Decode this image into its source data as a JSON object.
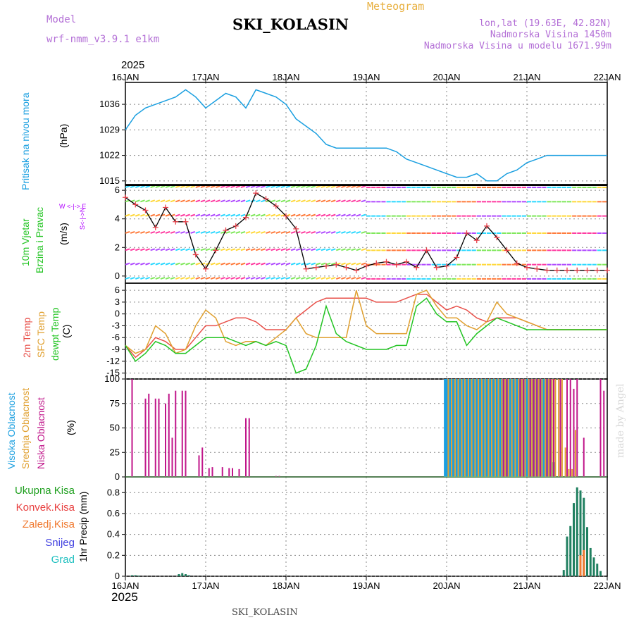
{
  "header": {
    "model_label": "Model",
    "model_name": "wrf-nmm_v3.9.1 e1km",
    "product": "Meteogram",
    "station": "SKI_KOLASIN",
    "location": "lon,lat (19.63E, 42.82N)",
    "elevation": "Nadmorska Visina 1450m",
    "model_elevation": "Nadmorska Visina u modelu 1671.99m",
    "credit": "made by Angel",
    "footer_station": "SKI_KOLASIN"
  },
  "axis": {
    "year": "2025",
    "day_labels": [
      "16JAN",
      "17JAN",
      "18JAN",
      "19JAN",
      "20JAN",
      "21JAN",
      "22JAN"
    ]
  },
  "colors": {
    "pressure": "#1a9fe0",
    "wind_label": "#22c422",
    "wind_dir": "#b000ff",
    "wind_speed": "#000000",
    "wind_marker": "#e8404a",
    "t2m": "#e8504a",
    "tsfc": "#e0a030",
    "dewpt": "#22c422",
    "cloud_high": "#1a9fe0",
    "cloud_mid": "#e0a030",
    "cloud_low": "#c0168a",
    "precip_total": "#20a020",
    "precip_conv": "#e84040",
    "precip_frozen": "#f07a30",
    "precip_snow": "#4040e0",
    "precip_grad": "#20c0c0"
  },
  "chart_data": [
    {
      "type": "line",
      "panel": "pressure",
      "ylabel": "Pritisak na nivou mora",
      "unit": "(hPa)",
      "ylim": [
        1014,
        1042
      ],
      "yticks": [
        1015,
        1022,
        1029,
        1036
      ],
      "grid": true,
      "x_hours": [
        0,
        3,
        6,
        9,
        12,
        15,
        18,
        21,
        24,
        27,
        30,
        33,
        36,
        39,
        42,
        45,
        48,
        51,
        54,
        57,
        60,
        63,
        66,
        69,
        72,
        75,
        78,
        81,
        84,
        87,
        90,
        93,
        96,
        99,
        102,
        105,
        108,
        111,
        114,
        117,
        120,
        123,
        126,
        129,
        132,
        135,
        138,
        141,
        144
      ],
      "series": [
        {
          "name": "Pritisak na nivou mora",
          "values": [
            1029,
            1033,
            1035,
            1036,
            1037,
            1038,
            1040,
            1038,
            1035,
            1037,
            1039,
            1038,
            1035,
            1040,
            1039,
            1038,
            1036,
            1032,
            1030,
            1028,
            1025,
            1024,
            1024,
            1024,
            1024,
            1024,
            1024,
            1023,
            1021,
            1020,
            1019,
            1018,
            1017,
            1016,
            1016,
            1017,
            1015,
            1015,
            1017,
            1018,
            1020,
            1021,
            1022,
            1022,
            1022,
            1022,
            1022,
            1022,
            1022
          ]
        }
      ]
    },
    {
      "type": "line",
      "panel": "wind",
      "ylabel": "10m Vjetar Brzina i Pravac",
      "unit": "(m/s)",
      "direction_legend": "W <-|-> E",
      "ylim": [
        -0.5,
        6.4
      ],
      "yticks": [
        0,
        2,
        4,
        6
      ],
      "grid": true,
      "x_hours": [
        0,
        3,
        6,
        9,
        12,
        15,
        18,
        21,
        24,
        27,
        30,
        33,
        36,
        39,
        42,
        45,
        48,
        51,
        54,
        57,
        60,
        63,
        66,
        69,
        72,
        75,
        78,
        81,
        84,
        87,
        90,
        93,
        96,
        99,
        102,
        105,
        108,
        111,
        114,
        117,
        120,
        123,
        126,
        129,
        132,
        135,
        138,
        141,
        144
      ],
      "series": [
        {
          "name": "10m Vjetar Brzina",
          "values": [
            5.5,
            5,
            4.6,
            3.4,
            4.8,
            3.8,
            3.8,
            1.5,
            0.5,
            1.8,
            3.2,
            3.5,
            4.1,
            5.8,
            5.4,
            4.9,
            4.2,
            3.3,
            0.5,
            0.6,
            0.7,
            0.8,
            0.6,
            0.4,
            0.7,
            0.9,
            1.0,
            0.8,
            1.0,
            0.6,
            1.8,
            0.6,
            0.7,
            1.3,
            3.0,
            2.5,
            3.5,
            2.7,
            1.8,
            0.9,
            0.6,
            0.5,
            0.4,
            0.4,
            0.4,
            0.4,
            0.4,
            0.4,
            0.4
          ]
        }
      ]
    },
    {
      "type": "line",
      "panel": "temperature",
      "unit": "(C)",
      "ylim": [
        -16.5,
        7.8
      ],
      "yticks": [
        -15,
        -12,
        -9,
        -6,
        -3,
        0,
        3,
        6
      ],
      "grid": true,
      "x_hours": [
        0,
        3,
        6,
        9,
        12,
        15,
        18,
        21,
        24,
        27,
        30,
        33,
        36,
        39,
        42,
        45,
        48,
        51,
        54,
        57,
        60,
        63,
        66,
        69,
        72,
        75,
        78,
        81,
        84,
        87,
        90,
        93,
        96,
        99,
        102,
        105,
        108,
        111,
        114,
        117,
        120,
        123,
        126,
        129,
        132,
        135,
        138,
        141,
        144
      ],
      "series": [
        {
          "name": "2m Temp",
          "values": [
            -8,
            -11,
            -9,
            -6,
            -7,
            -9,
            -9,
            -6,
            -3,
            -3,
            -2,
            -1,
            -1,
            -2,
            -4,
            -4,
            -4,
            -1,
            1,
            3,
            4,
            4,
            4,
            4,
            4,
            3,
            3,
            3,
            4,
            5,
            5,
            3,
            1,
            2,
            1,
            -1,
            -2,
            -1,
            -1,
            -1,
            -2,
            -3,
            -4,
            -4,
            -4,
            -4,
            -4,
            -4,
            -4
          ]
        },
        {
          "name": "SFC Temp",
          "values": [
            -8,
            -10,
            -9,
            -3,
            -5,
            -10,
            -9,
            -3,
            1,
            -1,
            -7,
            -8,
            -7,
            -7,
            -8,
            -6,
            -4,
            -1,
            -5,
            -6,
            -6,
            -6,
            -6,
            6,
            -3,
            -5,
            -5,
            -5,
            -5,
            5,
            6,
            2,
            -1,
            -1,
            -3,
            -4,
            -2,
            3,
            0,
            -1,
            -2,
            -3,
            -4,
            -4,
            -4,
            -4,
            -4,
            -4,
            -4
          ]
        },
        {
          "name": "dewpt Temp",
          "values": [
            -8,
            -12,
            -10,
            -7,
            -8,
            -10,
            -10,
            -8,
            -6,
            -6,
            -6,
            -7,
            -8,
            -7,
            -8,
            -7,
            -8,
            -15,
            -14,
            -8,
            2,
            -5,
            -7,
            -8,
            -9,
            -9,
            -9,
            -8,
            -8,
            2,
            4,
            0,
            -2,
            -2,
            -8,
            -5,
            -3,
            -1,
            -2,
            -3,
            -4,
            -4,
            -4,
            -4,
            -4,
            -4,
            -4,
            -4,
            -4
          ]
        }
      ]
    },
    {
      "type": "bar",
      "panel": "clouds",
      "unit": "(%)",
      "ylim": [
        0,
        100
      ],
      "yticks": [
        0,
        25,
        50,
        75,
        100
      ],
      "grid": true,
      "series": [
        {
          "name": "Visoka Oblacnost",
          "x_hours": [
            95.5,
            96,
            97,
            98,
            99,
            100,
            101,
            102,
            103,
            104,
            105,
            106,
            107,
            108,
            109,
            110,
            111,
            112,
            113,
            114,
            115,
            116,
            117,
            118,
            119,
            120,
            121,
            122,
            123,
            124,
            125,
            126,
            127,
            128
          ],
          "values": [
            100,
            100,
            100,
            100,
            100,
            100,
            100,
            100,
            100,
            100,
            100,
            100,
            100,
            100,
            100,
            100,
            100,
            100,
            100,
            100,
            100,
            100,
            100,
            100,
            100,
            100,
            100,
            100,
            100,
            100,
            100,
            100,
            100,
            15
          ]
        },
        {
          "name": "Srednja Oblacnost",
          "x_hours": [
            96.5,
            97.5,
            98.5,
            99.5,
            100.5,
            101.5,
            102.5,
            103.5,
            104.5,
            105.5,
            106.5,
            107.5,
            108.5,
            109.5,
            110.5,
            111.5,
            112.5,
            113.5,
            114.5,
            115.5,
            116.5,
            117.5,
            118.5,
            119.5,
            120.5,
            121.5,
            122.5,
            123.5,
            124.5,
            125.5,
            126.5,
            127.5,
            128.5,
            129.5,
            130.5,
            131.5,
            132.5,
            133.5,
            134.5
          ],
          "values": [
            100,
            100,
            100,
            100,
            100,
            100,
            100,
            100,
            100,
            100,
            100,
            100,
            100,
            100,
            100,
            100,
            100,
            100,
            100,
            100,
            100,
            100,
            100,
            100,
            100,
            100,
            100,
            100,
            100,
            100,
            100,
            100,
            100,
            100,
            100,
            30,
            8,
            8,
            48
          ]
        },
        {
          "name": "Niska Oblacnost",
          "x_hours": [
            2,
            6,
            7,
            9,
            10,
            12,
            13,
            14,
            15,
            17,
            18,
            22,
            23,
            25,
            26,
            29,
            31,
            32,
            34,
            36,
            37,
            45,
            46,
            113,
            114,
            118,
            119,
            121,
            122,
            123,
            124,
            126,
            127,
            128,
            130,
            132,
            133,
            134,
            135,
            137,
            142,
            143
          ],
          "values": [
            100,
            80,
            85,
            80,
            80,
            75,
            85,
            40,
            88,
            88,
            88,
            22,
            30,
            9,
            10,
            10,
            9,
            9,
            8,
            60,
            60,
            1,
            1,
            100,
            100,
            100,
            100,
            100,
            100,
            100,
            100,
            100,
            100,
            100,
            100,
            100,
            100,
            90,
            100,
            40,
            100,
            88
          ]
        }
      ]
    },
    {
      "type": "bar",
      "panel": "precip",
      "ylabel": "1hr Precip",
      "unit": "(mm)",
      "ylim": [
        0,
        0.95
      ],
      "yticks": [
        0,
        0.2,
        0.4,
        0.6,
        0.8
      ],
      "grid": true,
      "series": [
        {
          "name": "Ukupna Kisa",
          "x_hours": [
            2,
            3,
            4,
            16,
            17,
            18,
            19,
            131,
            132,
            133,
            134,
            135,
            136,
            137,
            138,
            139,
            140,
            141,
            142
          ],
          "values": [
            0.01,
            0.01,
            0.005,
            0.02,
            0.03,
            0.02,
            0.01,
            0.06,
            0.38,
            0.48,
            0.7,
            0.85,
            0.82,
            0.75,
            0.47,
            0.27,
            0.18,
            0.12,
            0.05
          ]
        },
        {
          "name": "Konvek.Kisa",
          "x_hours": [],
          "values": []
        },
        {
          "name": "Zaledj.Kisa",
          "x_hours": [
            136,
            137
          ],
          "values": [
            0.2,
            0.25
          ]
        },
        {
          "name": "Snijeg",
          "x_hours": [],
          "values": []
        },
        {
          "name": "Grad",
          "x_hours": [],
          "values": []
        }
      ]
    }
  ]
}
